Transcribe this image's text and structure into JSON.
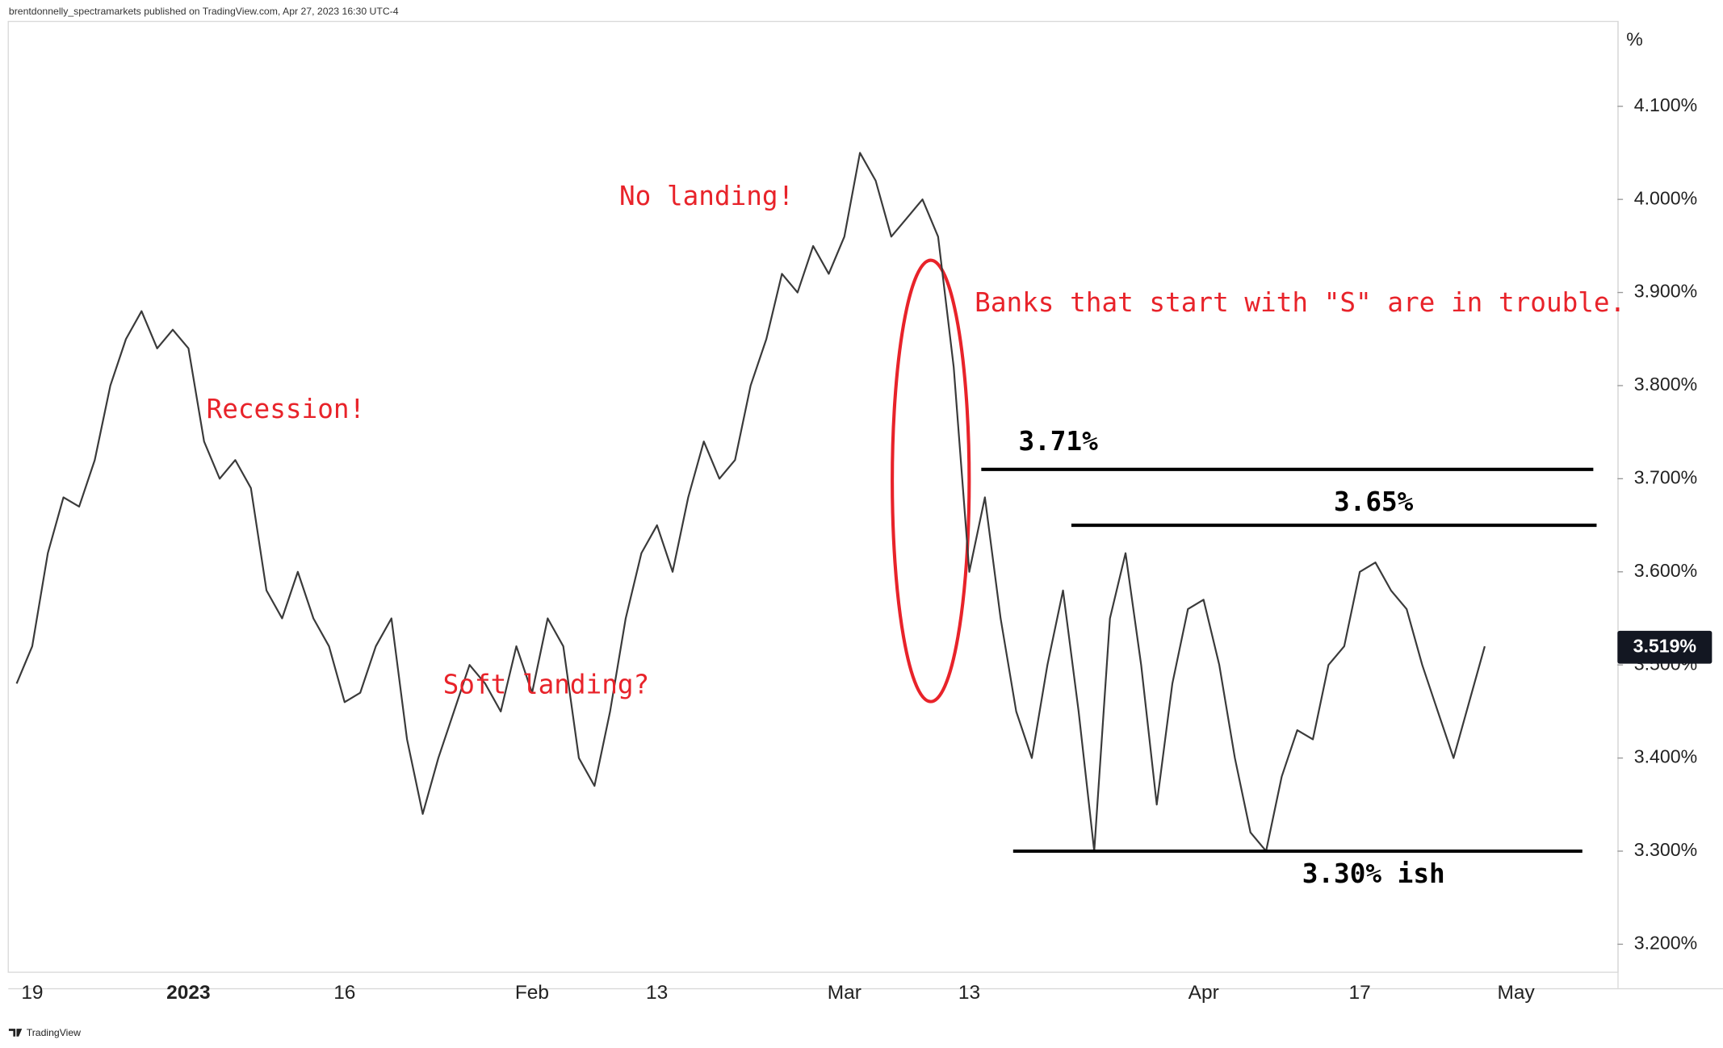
{
  "header": "brentdonnelly_spectramarkets published on TradingView.com, Apr 27, 2023 16:30 UTC-4",
  "footer": "TradingView",
  "chart_data": {
    "type": "line",
    "color": "#3a3a3a",
    "grid": false,
    "y_unit": "%",
    "categories": [
      null,
      "19",
      null,
      null,
      null,
      null,
      null,
      null,
      null,
      null,
      null,
      "2023",
      null,
      null,
      null,
      null,
      null,
      null,
      null,
      null,
      null,
      "16",
      null,
      null,
      null,
      null,
      null,
      null,
      null,
      null,
      null,
      null,
      null,
      "Feb",
      null,
      null,
      null,
      null,
      null,
      null,
      null,
      "13",
      null,
      null,
      null,
      null,
      null,
      null,
      null,
      null,
      null,
      null,
      null,
      "Mar",
      null,
      null,
      null,
      null,
      null,
      null,
      null,
      "13",
      null,
      null,
      null,
      null,
      null,
      null,
      null,
      null,
      null,
      null,
      null,
      null,
      null,
      null,
      "Apr",
      null,
      null,
      null,
      null,
      null,
      null,
      null,
      null,
      null,
      "17",
      null,
      null,
      null,
      null,
      null,
      null,
      null,
      null,
      null,
      "May",
      null,
      null,
      null,
      null,
      null,
      null
    ],
    "values": [
      3.48,
      3.52,
      3.62,
      3.68,
      3.67,
      3.72,
      3.8,
      3.85,
      3.88,
      3.84,
      3.86,
      3.84,
      3.74,
      3.7,
      3.72,
      3.69,
      3.58,
      3.55,
      3.6,
      3.55,
      3.52,
      3.46,
      3.47,
      3.52,
      3.55,
      3.42,
      3.34,
      3.4,
      3.45,
      3.5,
      3.48,
      3.45,
      3.52,
      3.47,
      3.55,
      3.52,
      3.4,
      3.37,
      3.45,
      3.55,
      3.62,
      3.65,
      3.6,
      3.68,
      3.74,
      3.7,
      3.72,
      3.8,
      3.85,
      3.92,
      3.9,
      3.95,
      3.92,
      3.96,
      4.05,
      4.02,
      3.96,
      3.98,
      4.0,
      3.96,
      3.82,
      3.6,
      3.68,
      3.55,
      3.45,
      3.4,
      3.5,
      3.58,
      3.45,
      3.3,
      3.55,
      3.62,
      3.5,
      3.35,
      3.48,
      3.56,
      3.57,
      3.5,
      3.4,
      3.32,
      3.3,
      3.38,
      3.43,
      3.42,
      3.5,
      3.52,
      3.6,
      3.61,
      3.58,
      3.56,
      3.5,
      3.45,
      3.4,
      3.46,
      3.52,
      null,
      null,
      null,
      null,
      null,
      null,
      null,
      null
    ],
    "ylim": [
      3.17,
      4.18
    ],
    "yticks": [
      {
        "value": 3.2,
        "label": "3.200%"
      },
      {
        "value": 3.3,
        "label": "3.300%"
      },
      {
        "value": 3.4,
        "label": "3.400%"
      },
      {
        "value": 3.5,
        "label": "3.500%"
      },
      {
        "value": 3.6,
        "label": "3.600%"
      },
      {
        "value": 3.7,
        "label": "3.700%"
      },
      {
        "value": 3.8,
        "label": "3.800%"
      },
      {
        "value": 3.9,
        "label": "3.900%"
      },
      {
        "value": 4.0,
        "label": "4.000%"
      },
      {
        "value": 4.1,
        "label": "4.100%"
      }
    ],
    "last_value": 3.519,
    "last_value_label": "3.519%",
    "levels": [
      {
        "value": 3.71,
        "label": "3.71%"
      },
      {
        "value": 3.65,
        "label": "3.65%"
      },
      {
        "value": 3.3,
        "label": "3.30% ish"
      }
    ],
    "annotations": [
      "No landing!",
      "Recession!",
      "Soft landing?",
      "Banks that start with \"S\" are in trouble."
    ]
  }
}
